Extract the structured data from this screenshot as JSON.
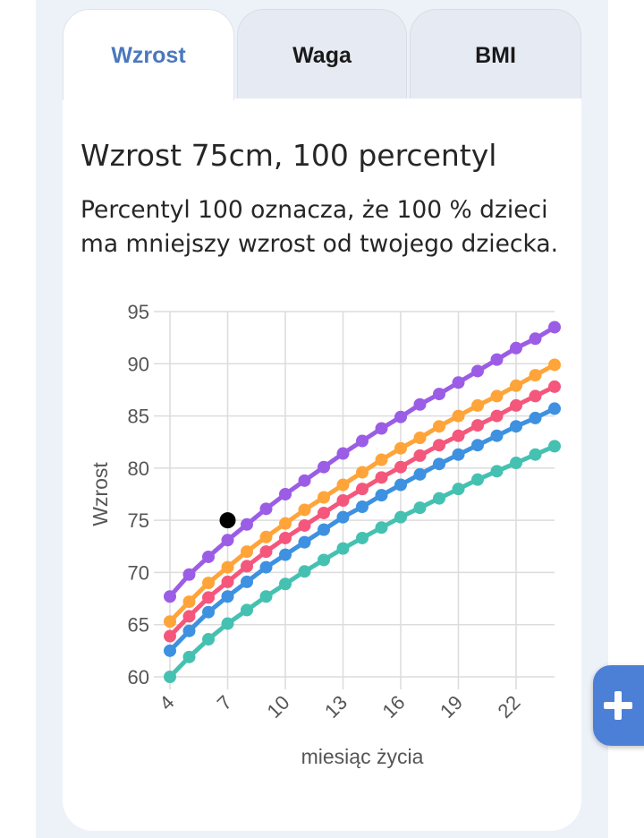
{
  "tabs": [
    {
      "label": "Wzrost",
      "active": true
    },
    {
      "label": "Waga",
      "active": false
    },
    {
      "label": "BMI",
      "active": false
    }
  ],
  "card": {
    "title": "Wzrost 75cm, 100 percentyl",
    "description": "Percentyl 100 oznacza, że 100 % dzieci ma mniejszy wzrost od twojego dziecka."
  },
  "fab": {
    "icon": "plus-icon"
  },
  "colors": {
    "accent": "#4b78bd",
    "fab": "#4c7fd6",
    "purple": "#9b5de5",
    "orange": "#ffa439",
    "pink": "#f4577b",
    "blue": "#3d91e0",
    "teal": "#45c1b2"
  },
  "chart_data": {
    "type": "line",
    "xlabel": "miesiąc życia",
    "ylabel": "Wzrost",
    "ylim": [
      60,
      95
    ],
    "xlim": [
      4,
      24
    ],
    "yticks": [
      60,
      65,
      70,
      75,
      80,
      85,
      90,
      95
    ],
    "xticks": [
      4,
      7,
      10,
      13,
      16,
      19,
      22
    ],
    "grid": true,
    "x": [
      4,
      5,
      6,
      7,
      8,
      9,
      10,
      11,
      12,
      13,
      14,
      15,
      16,
      17,
      18,
      19,
      20,
      21,
      22,
      23,
      24
    ],
    "series": [
      {
        "color": "#9b5de5",
        "values": [
          67.7,
          69.8,
          71.5,
          73.1,
          74.6,
          76.1,
          77.5,
          78.8,
          80.1,
          81.4,
          82.6,
          83.8,
          84.9,
          86.1,
          87.1,
          88.2,
          89.3,
          90.4,
          91.5,
          92.4,
          93.5
        ]
      },
      {
        "color": "#ffa439",
        "values": [
          65.3,
          67.2,
          69.0,
          70.5,
          72.0,
          73.4,
          74.7,
          76.0,
          77.2,
          78.4,
          79.6,
          80.8,
          81.9,
          82.9,
          84.0,
          85.0,
          86.0,
          86.9,
          87.9,
          88.9,
          89.9
        ]
      },
      {
        "color": "#f4577b",
        "values": [
          63.9,
          65.8,
          67.6,
          69.1,
          70.6,
          72.0,
          73.3,
          74.5,
          75.7,
          76.9,
          78.0,
          79.1,
          80.1,
          81.2,
          82.2,
          83.1,
          84.1,
          85.0,
          86.0,
          86.9,
          87.8
        ]
      },
      {
        "color": "#3d91e0",
        "values": [
          62.5,
          64.4,
          66.2,
          67.7,
          69.1,
          70.5,
          71.7,
          72.9,
          74.1,
          75.3,
          76.3,
          77.4,
          78.4,
          79.4,
          80.4,
          81.3,
          82.2,
          83.1,
          84.0,
          84.8,
          85.7
        ]
      },
      {
        "color": "#45c1b2",
        "values": [
          60.0,
          61.9,
          63.6,
          65.1,
          66.4,
          67.7,
          68.9,
          70.1,
          71.2,
          72.3,
          73.3,
          74.3,
          75.3,
          76.2,
          77.1,
          78.0,
          78.9,
          79.7,
          80.5,
          81.3,
          82.1
        ]
      }
    ],
    "marker": {
      "x": 7,
      "y": 75,
      "color": "#000000"
    }
  }
}
